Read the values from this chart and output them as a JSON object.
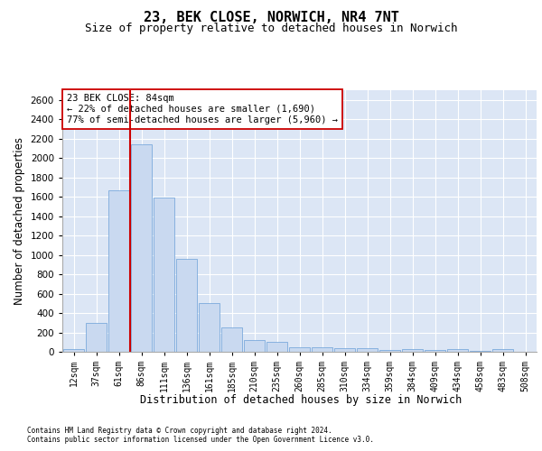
{
  "title1": "23, BEK CLOSE, NORWICH, NR4 7NT",
  "title2": "Size of property relative to detached houses in Norwich",
  "xlabel": "Distribution of detached houses by size in Norwich",
  "ylabel": "Number of detached properties",
  "bar_color": "#c9d9f0",
  "bar_edge_color": "#6a9fd8",
  "bin_labels": [
    "12sqm",
    "37sqm",
    "61sqm",
    "86sqm",
    "111sqm",
    "136sqm",
    "161sqm",
    "185sqm",
    "210sqm",
    "235sqm",
    "260sqm",
    "285sqm",
    "310sqm",
    "334sqm",
    "359sqm",
    "384sqm",
    "409sqm",
    "434sqm",
    "458sqm",
    "483sqm",
    "508sqm"
  ],
  "bar_values": [
    30,
    300,
    1670,
    2140,
    1590,
    960,
    500,
    250,
    120,
    100,
    50,
    50,
    35,
    35,
    20,
    30,
    20,
    30,
    5,
    25,
    0
  ],
  "vline_bin_index": 3,
  "vline_color": "#cc0000",
  "annotation_text": "23 BEK CLOSE: 84sqm\n← 22% of detached houses are smaller (1,690)\n77% of semi-detached houses are larger (5,960) →",
  "ylim_max": 2700,
  "yticks": [
    0,
    200,
    400,
    600,
    800,
    1000,
    1200,
    1400,
    1600,
    1800,
    2000,
    2200,
    2400,
    2600
  ],
  "footnote1": "Contains HM Land Registry data © Crown copyright and database right 2024.",
  "footnote2": "Contains public sector information licensed under the Open Government Licence v3.0.",
  "bg_color": "#dce6f5",
  "grid_color": "#ffffff",
  "title1_fontsize": 11,
  "title2_fontsize": 9,
  "xlabel_fontsize": 8.5,
  "ylabel_fontsize": 8.5,
  "tick_fontsize": 7,
  "annot_fontsize": 7.5,
  "footnote_fontsize": 5.5
}
